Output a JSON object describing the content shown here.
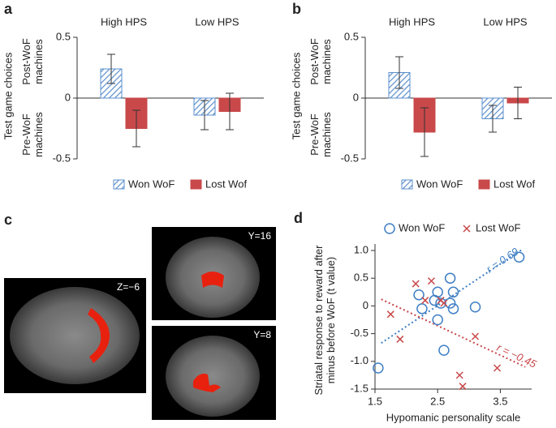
{
  "chart_data": [
    {
      "type": "bar",
      "panel": "a",
      "ylabel": "Test game choices",
      "annotations": [
        "Post-WoF machines",
        "Pre-WoF machines"
      ],
      "categories": [
        "High HPS",
        "Low HPS"
      ],
      "series": [
        {
          "name": "Won WoF",
          "color": "#5b8fcc",
          "hatch": true,
          "values": [
            0.24,
            -0.14
          ],
          "errors": [
            0.12,
            0.12
          ]
        },
        {
          "name": "Lost Wof",
          "color": "#c9484a",
          "hatch": false,
          "values": [
            -0.25,
            -0.11
          ],
          "errors": [
            0.15,
            0.15
          ]
        }
      ],
      "ylim": [
        -0.5,
        0.5
      ],
      "yticks": [
        -0.5,
        0,
        0.5
      ]
    },
    {
      "type": "bar",
      "panel": "b",
      "ylabel": "Test game choices",
      "annotations": [
        "Post-WoF machines",
        "Pre-WoF machines"
      ],
      "categories": [
        "High HPS",
        "Low HPS"
      ],
      "series": [
        {
          "name": "Won WoF",
          "color": "#5b8fcc",
          "hatch": true,
          "values": [
            0.21,
            -0.17
          ],
          "errors": [
            0.13,
            0.11
          ]
        },
        {
          "name": "Lost Wof",
          "color": "#c9484a",
          "hatch": false,
          "values": [
            -0.28,
            -0.04
          ],
          "errors": [
            0.2,
            0.13
          ]
        }
      ],
      "ylim": [
        -0.5,
        0.5
      ],
      "yticks": [
        -0.5,
        0,
        0.5
      ]
    },
    {
      "type": "scatter",
      "panel": "d",
      "xlabel": "Hypomanic personality scale",
      "ylabel": "Striatal response to reward after minus before WoF (t value)",
      "series": [
        {
          "name": "Won WoF",
          "color": "#3f7fc4",
          "marker": "circle",
          "x": [
            1.55,
            2.2,
            2.25,
            2.45,
            2.5,
            2.5,
            2.55,
            2.6,
            2.7,
            2.7,
            2.75,
            2.75,
            3.1,
            3.8
          ],
          "values": [
            -1.12,
            0.2,
            -0.05,
            0.1,
            0.25,
            -0.25,
            0.05,
            -0.8,
            0.5,
            0.05,
            -0.05,
            0.25,
            -0.02,
            0.88
          ]
        },
        {
          "name": "Lost WoF",
          "color": "#c9484a",
          "marker": "cross",
          "x": [
            1.75,
            1.9,
            2.15,
            2.3,
            2.4,
            2.55,
            2.6,
            2.85,
            2.9,
            3.1,
            3.45
          ],
          "values": [
            -0.15,
            -0.6,
            0.4,
            0.1,
            0.45,
            0.1,
            0.05,
            -1.25,
            -1.45,
            -0.55,
            -1.12
          ]
        }
      ],
      "trend_lines": [
        {
          "color": "#3f7fc4",
          "x": [
            1.6,
            3.85
          ],
          "y": [
            -0.67,
            1.02
          ],
          "label": "r = 0.69",
          "label_at": [
            3.3,
            0.63
          ]
        },
        {
          "color": "#c9484a",
          "x": [
            1.6,
            3.9
          ],
          "y": [
            0.12,
            -1.1
          ],
          "label": "r = −0.45",
          "label_at": [
            3.45,
            -0.75
          ]
        }
      ],
      "xlim": [
        1.5,
        4.0
      ],
      "xticks": [
        1.5,
        2.5,
        3.5
      ],
      "ylim": [
        -1.5,
        1.0
      ],
      "yticks": [
        -1.5,
        {
          "value": -1.0,
          "label": "-1.0"
        },
        -0.5,
        0,
        0.5,
        {
          "value": 1.0,
          "label": "1.0"
        }
      ]
    }
  ],
  "images": {
    "panel": "c",
    "labels": [
      "Z=−6",
      "Y=16",
      "Y=8"
    ]
  }
}
